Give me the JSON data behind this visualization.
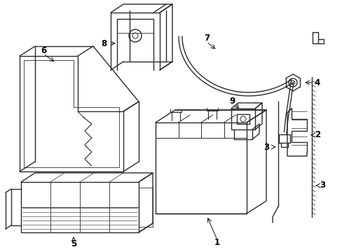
{
  "background_color": "#ffffff",
  "line_color": "#2a2a2a",
  "label_color": "#000000",
  "lw": 1.0,
  "figsize": [
    4.89,
    3.6
  ],
  "dpi": 100
}
